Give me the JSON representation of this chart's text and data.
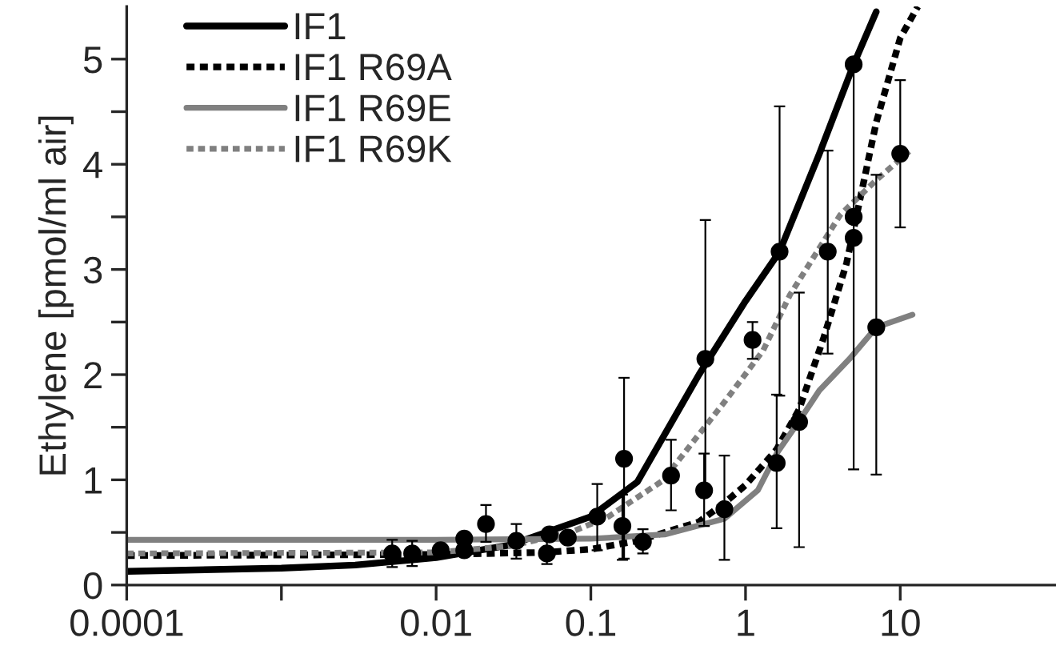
{
  "chart_data": {
    "type": "line",
    "ylabel": "Ethylene [pmol/ml air]",
    "log": "x",
    "xlim": [
      0.0001,
      100
    ],
    "xticks": [
      0.0001,
      {
        "value": 0.001,
        "label": null
      },
      0.01,
      0.1,
      1,
      10
    ],
    "ylim": [
      0,
      5.5
    ],
    "yticks": [
      0,
      {
        "value": 0.5,
        "label": null
      },
      1,
      {
        "value": 1.5,
        "label": null
      },
      2,
      {
        "value": 2.5,
        "label": null
      },
      3,
      {
        "value": 3.5,
        "label": null
      },
      4,
      {
        "value": 4.5,
        "label": null
      },
      5
    ],
    "grid": false,
    "legend": "top left",
    "series": [
      {
        "name": "IF1",
        "color": "#000000",
        "line_style": "solid",
        "x": [
          0.0001,
          0.001,
          0.003,
          0.01,
          0.03,
          0.1,
          0.2,
          0.5,
          1,
          1.66,
          3,
          5,
          7
        ],
        "values": [
          0.13,
          0.16,
          0.19,
          0.26,
          0.38,
          0.65,
          0.98,
          2.0,
          2.7,
          3.17,
          4.1,
          4.95,
          5.45
        ]
      },
      {
        "name": "IF1 R69A",
        "color": "#000000",
        "line_style": "dashed",
        "x": [
          0.0001,
          0.01,
          0.05,
          0.1,
          0.2,
          0.5,
          0.73,
          1,
          1.59,
          2.22,
          3.2,
          4.5,
          7,
          10,
          13
        ],
        "values": [
          0.28,
          0.29,
          0.31,
          0.34,
          0.42,
          0.6,
          0.78,
          0.95,
          1.29,
          1.67,
          2.35,
          3.06,
          4.4,
          5.2,
          5.5
        ]
      },
      {
        "name": "IF1 R69E",
        "color": "#808080",
        "line_style": "solid",
        "x": [
          0.0001,
          0.01,
          0.1,
          0.3,
          0.73,
          1.2,
          1.59,
          2.2,
          3,
          4.7,
          7,
          12
        ],
        "values": [
          0.43,
          0.43,
          0.44,
          0.48,
          0.63,
          0.9,
          1.25,
          1.55,
          1.85,
          2.15,
          2.45,
          2.57
        ]
      },
      {
        "name": "IF1 R69K",
        "color": "#808080",
        "line_style": "dashed",
        "x": [
          0.0001,
          0.01,
          0.03,
          0.074,
          0.13,
          0.29,
          0.74,
          1.3,
          1.94,
          4.1,
          7,
          12
        ],
        "values": [
          0.3,
          0.31,
          0.37,
          0.5,
          0.65,
          0.99,
          1.75,
          2.23,
          2.76,
          3.52,
          3.85,
          4.15
        ]
      },
      {
        "type": "scatter",
        "color": "#000000",
        "marker": "circle",
        "x": [
          0.0052,
          0.007,
          0.0107,
          0.0152,
          0.0152,
          0.021,
          0.033,
          0.052,
          0.054,
          0.071,
          0.11,
          0.164,
          0.16,
          0.217,
          0.33,
          0.55,
          0.54,
          0.73,
          1.11,
          1.59,
          2.22,
          1.66,
          3.4,
          5,
          5,
          5,
          7,
          10
        ],
        "values": [
          0.3,
          0.3,
          0.33,
          0.33,
          0.44,
          0.58,
          0.42,
          0.3,
          0.48,
          0.45,
          0.65,
          1.2,
          0.56,
          0.41,
          1.04,
          2.15,
          0.9,
          0.72,
          2.33,
          1.16,
          1.55,
          3.17,
          3.17,
          4.95,
          3.3,
          3.5,
          2.45,
          4.1
        ],
        "errors": [
          [
            0.17,
            0.43
          ],
          [
            0.18,
            0.42
          ],
          null,
          null,
          null,
          [
            0.41,
            0.76
          ],
          [
            0.25,
            0.58
          ],
          [
            0.2,
            0.46
          ],
          null,
          null,
          [
            0.33,
            0.96
          ],
          [
            0.25,
            1.97
          ],
          [
            0.24,
            0.86
          ],
          [
            0.3,
            0.53
          ],
          [
            0.71,
            1.38
          ],
          [
            0.85,
            3.47
          ],
          [
            0.56,
            1.25
          ],
          [
            0.24,
            1.23
          ],
          [
            2.15,
            2.5
          ],
          [
            0.54,
            1.81
          ],
          [
            0.36,
            2.78
          ],
          [
            1.8,
            4.55
          ],
          [
            2.2,
            4.13
          ],
          [
            1.1,
            4.95
          ],
          null,
          null,
          [
            1.05,
            3.9
          ],
          [
            3.4,
            4.8
          ]
        ]
      }
    ]
  }
}
